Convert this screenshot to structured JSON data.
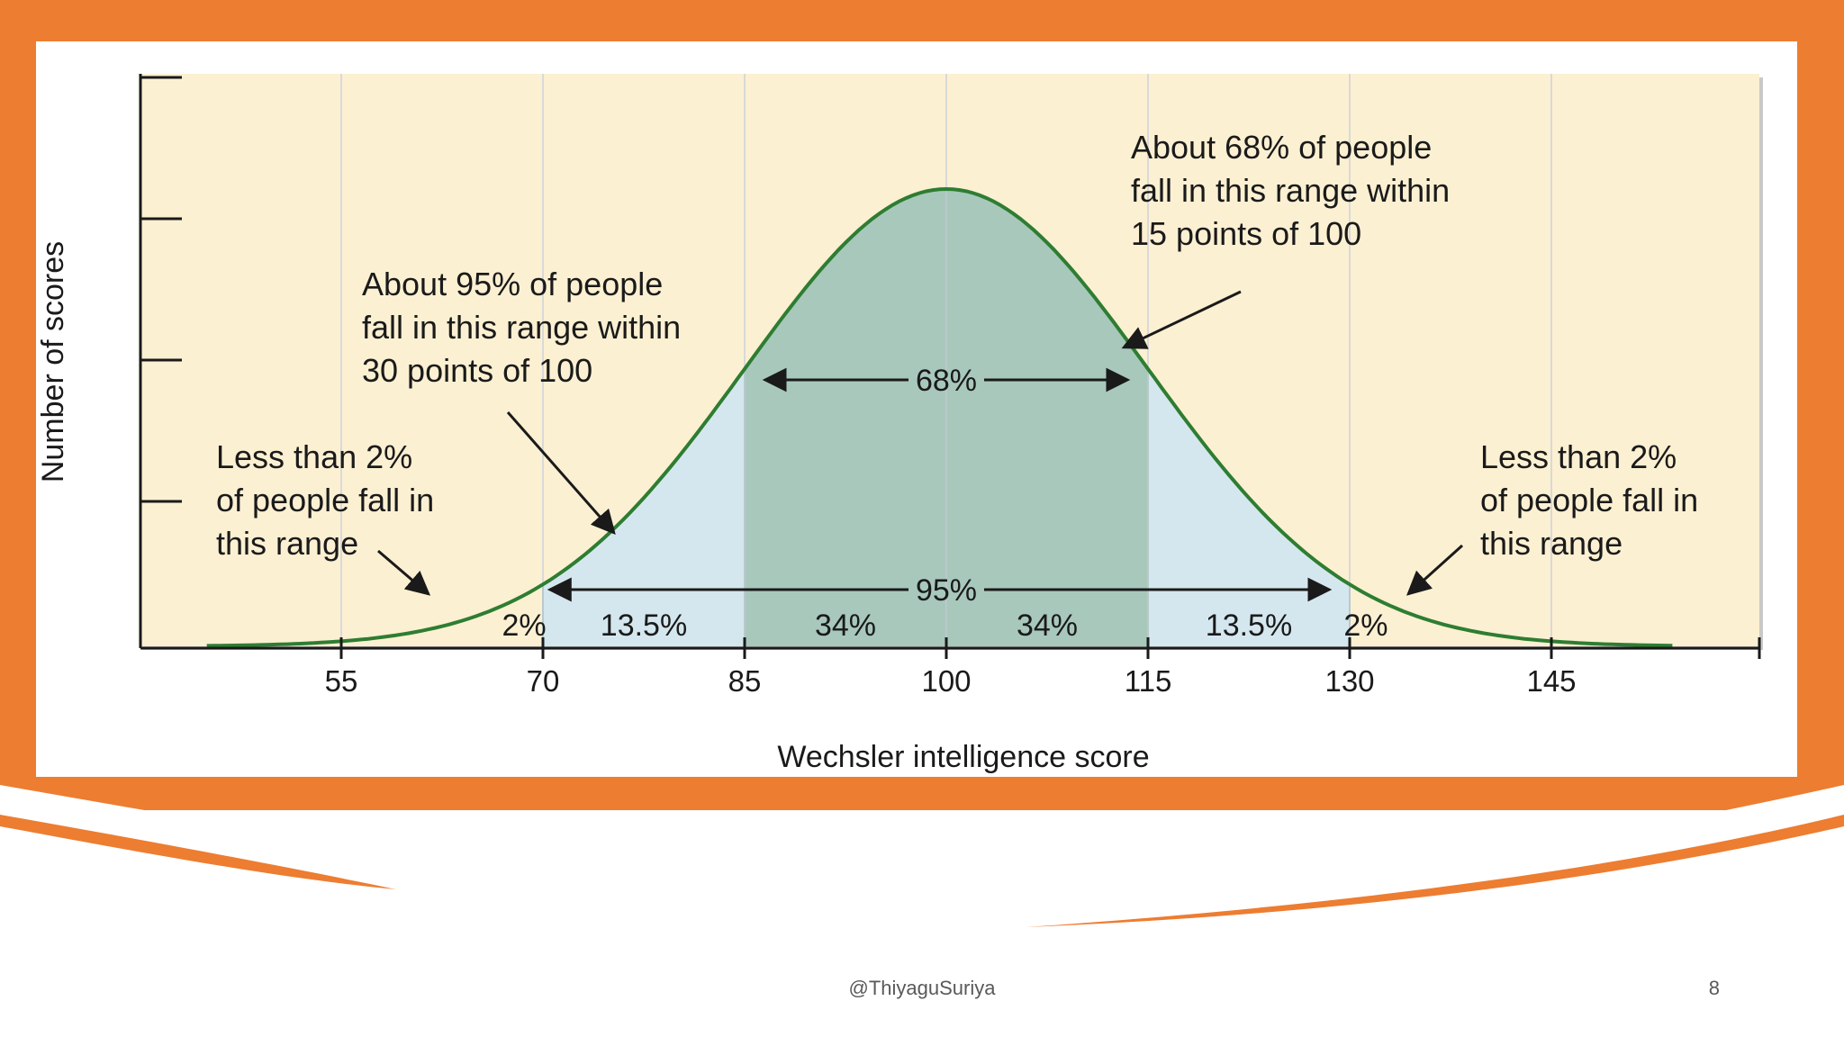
{
  "colors": {
    "accent": "#ED7D31",
    "plot_background": "#FCF0D2",
    "gridline": "#D9D9D9",
    "band_95": "#D5E7EE",
    "band_68": "#A8C8BC",
    "curve": "#2E7D32"
  },
  "chart_data": {
    "type": "area",
    "distribution": "normal",
    "mean": 100,
    "sd": 15,
    "xlabel": "Wechsler intelligence score",
    "ylabel": "Number of scores",
    "xlim": [
      35,
      160
    ],
    "x_ticks": [
      55,
      70,
      85,
      100,
      115,
      130,
      145
    ],
    "y_ticks_labeled": false,
    "grid": true,
    "bands": [
      {
        "range": [
          85,
          115
        ],
        "label": "68%",
        "color": "#A8C8BC"
      },
      {
        "range": [
          70,
          130
        ],
        "label": "95%",
        "color": "#D5E7EE"
      }
    ],
    "segments": [
      {
        "range": [
          null,
          70
        ],
        "label": "2%"
      },
      {
        "range": [
          70,
          85
        ],
        "label": "13.5%"
      },
      {
        "range": [
          85,
          100
        ],
        "label": "34%"
      },
      {
        "range": [
          100,
          115
        ],
        "label": "34%"
      },
      {
        "range": [
          115,
          130
        ],
        "label": "13.5%"
      },
      {
        "range": [
          130,
          null
        ],
        "label": "2%"
      }
    ],
    "annotations": {
      "left_tail": [
        "Less than 2%",
        "of people fall in",
        "this range"
      ],
      "within_30": [
        "About 95% of people",
        "fall in this range within",
        "30 points of 100"
      ],
      "within_15": [
        "About 68% of people",
        "fall in this range within",
        "15 points of 100"
      ],
      "right_tail": [
        "Less than 2%",
        "of people fall in",
        "this range"
      ]
    }
  },
  "footer": {
    "author": "@ThiyaguSuriya",
    "page_number": "8"
  }
}
